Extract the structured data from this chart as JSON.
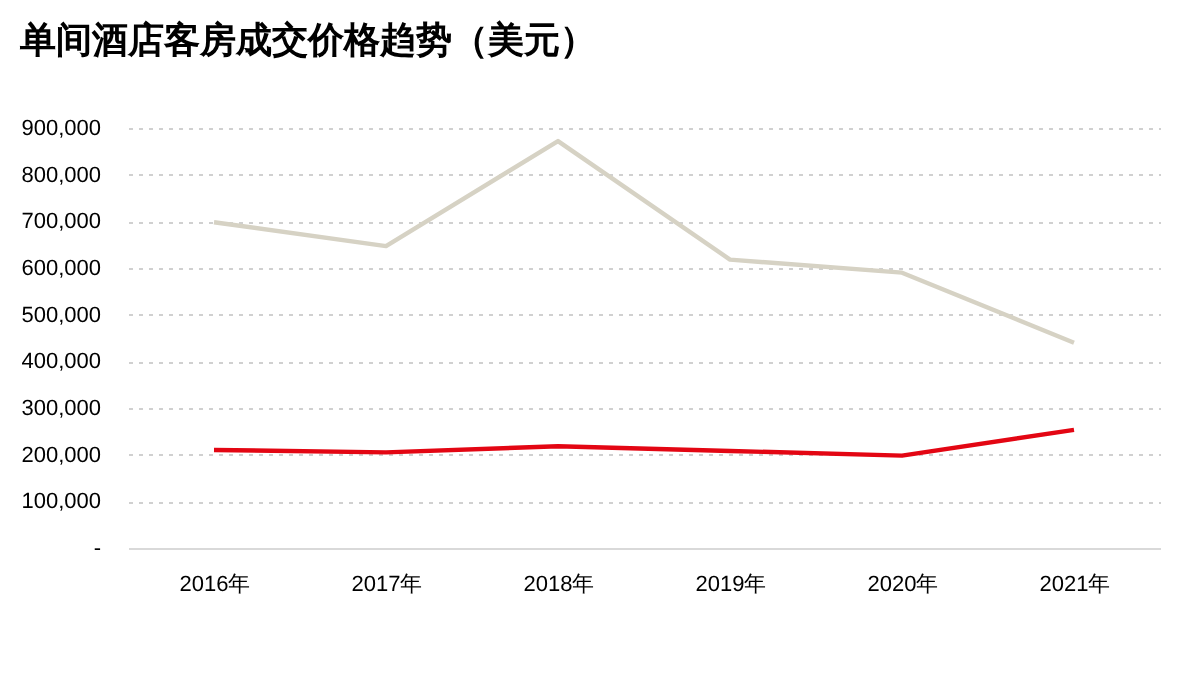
{
  "chart_data": {
    "type": "line",
    "title": "单间酒店客房成交价格趋势（美元）",
    "categories": [
      "2016年",
      "2017年",
      "2018年",
      "2019年",
      "2020年",
      "2021年"
    ],
    "series": [
      {
        "color": "#d6d2c4",
        "values": [
          698000,
          647000,
          872000,
          618000,
          590000,
          440000
        ]
      },
      {
        "color": "#e30613",
        "values": [
          210000,
          205000,
          218000,
          208000,
          198000,
          253000
        ]
      }
    ],
    "ylim": [
      0,
      900000
    ],
    "yticks": [
      {
        "value": 0,
        "label": "-"
      },
      {
        "value": 100000,
        "label": "100,000"
      },
      {
        "value": 200000,
        "label": "200,000"
      },
      {
        "value": 300000,
        "label": "300,000"
      },
      {
        "value": 400000,
        "label": "400,000"
      },
      {
        "value": 500000,
        "label": "500,000"
      },
      {
        "value": 600000,
        "label": "600,000"
      },
      {
        "value": 700000,
        "label": "700,000"
      },
      {
        "value": 800000,
        "label": "800,000"
      },
      {
        "value": 900000,
        "label": "900,000"
      }
    ],
    "grid": "y",
    "marker": "none",
    "line_style": "solid"
  }
}
